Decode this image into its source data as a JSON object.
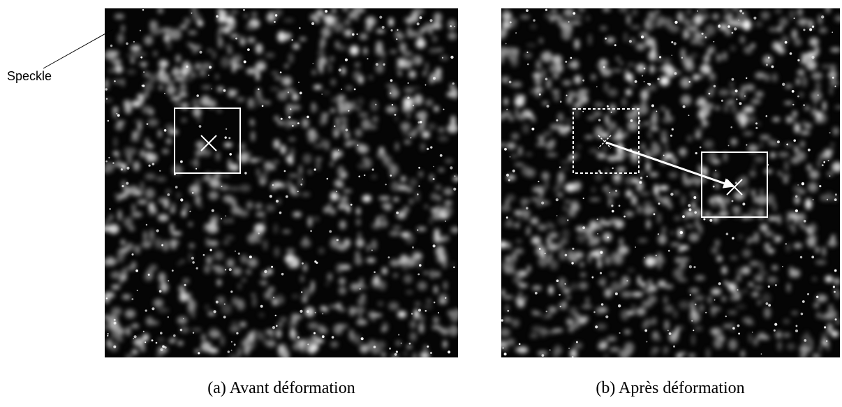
{
  "annotation": "Speckle",
  "panels": [
    {
      "caption": "(a) Avant déformation"
    },
    {
      "caption": "(b) Après déformation"
    }
  ]
}
